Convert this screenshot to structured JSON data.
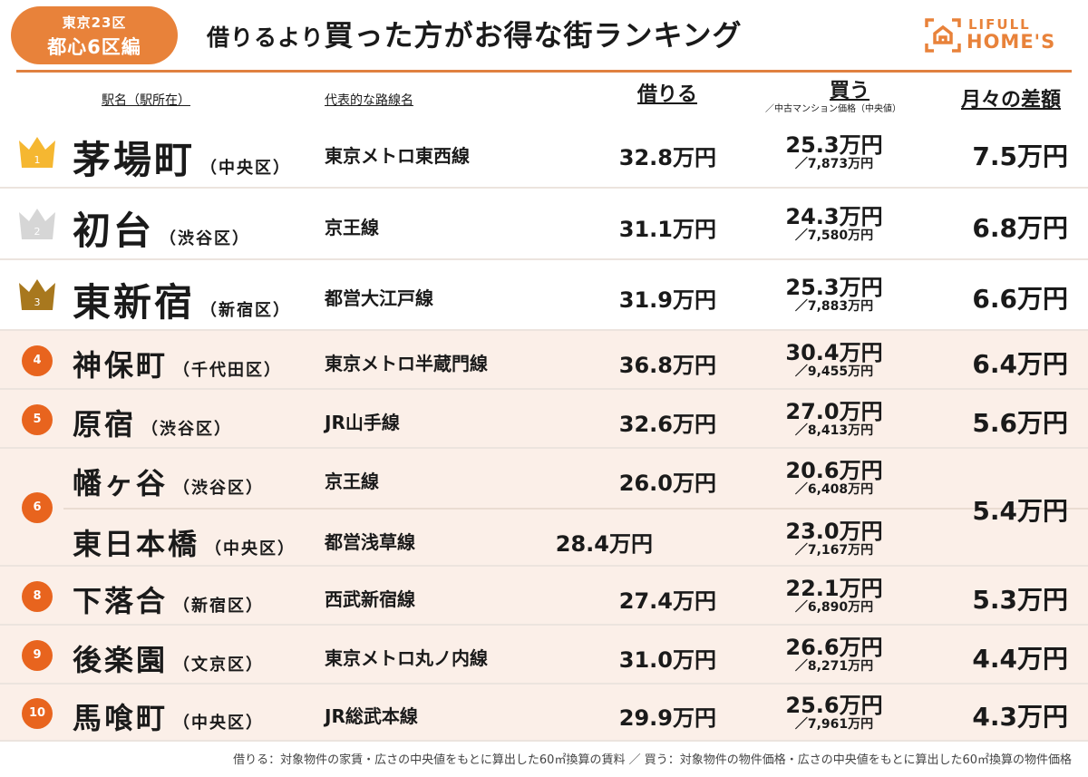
{
  "header": {
    "badge_line1": "東京23区",
    "badge_line2": "都心6区編",
    "title_prefix": "借りるより",
    "title_main": "買った方がお得な街ランキング",
    "logo_top": "LIFULL",
    "logo_bottom": "HOME'S",
    "brand_color": "#e8823a"
  },
  "columns": {
    "station": "駅名（駅所在）",
    "line": "代表的な路線名",
    "rent": "借りる",
    "buy": "買う",
    "buy_note": "／中古マンション価格（中央値）",
    "diff": "月々の差額"
  },
  "rows": [
    {
      "rank": "1",
      "badge": "crown-gold",
      "diff": "7.5万円",
      "stations": [
        {
          "name": "茅場町",
          "ward": "（中央区）",
          "line": "東京メトロ東西線",
          "rent": "32.8万円",
          "buy": "25.3万円",
          "price": "／7,873万円"
        }
      ]
    },
    {
      "rank": "2",
      "badge": "crown-silver",
      "diff": "6.8万円",
      "stations": [
        {
          "name": "初台",
          "ward": "（渋谷区）",
          "line": "京王線",
          "rent": "31.1万円",
          "buy": "24.3万円",
          "price": "／7,580万円"
        }
      ]
    },
    {
      "rank": "3",
      "badge": "crown-bronze",
      "diff": "6.6万円",
      "stations": [
        {
          "name": "東新宿",
          "ward": "（新宿区）",
          "line": "都営大江戸線",
          "rent": "31.9万円",
          "buy": "25.3万円",
          "price": "／7,883万円"
        }
      ]
    },
    {
      "rank": "4",
      "badge": "circle",
      "diff": "6.4万円",
      "stations": [
        {
          "name": "神保町",
          "ward": "（千代田区）",
          "line": "東京メトロ半蔵門線",
          "rent": "36.8万円",
          "buy": "30.4万円",
          "price": "／9,455万円"
        }
      ]
    },
    {
      "rank": "5",
      "badge": "circle",
      "diff": "5.6万円",
      "stations": [
        {
          "name": "原宿",
          "ward": "（渋谷区）",
          "line": "JR山手線",
          "rent": "32.6万円",
          "buy": "27.0万円",
          "price": "／8,413万円"
        }
      ]
    },
    {
      "rank": "6",
      "badge": "circle",
      "diff": "5.4万円",
      "stations": [
        {
          "name": "幡ヶ谷",
          "ward": "（渋谷区）",
          "line": "京王線",
          "rent": "26.0万円",
          "buy": "20.6万円",
          "price": "／6,408万円"
        },
        {
          "name": "東日本橋",
          "ward": "（中央区）",
          "line": "都営浅草線",
          "rent": "28.4万円",
          "buy": "23.0万円",
          "price": "／7,167万円"
        }
      ]
    },
    {
      "rank": "8",
      "badge": "circle",
      "diff": "5.3万円",
      "stations": [
        {
          "name": "下落合",
          "ward": "（新宿区）",
          "line": "西武新宿線",
          "rent": "27.4万円",
          "buy": "22.1万円",
          "price": "／6,890万円"
        }
      ]
    },
    {
      "rank": "9",
      "badge": "circle",
      "diff": "4.4万円",
      "stations": [
        {
          "name": "後楽園",
          "ward": "（文京区）",
          "line": "東京メトロ丸ノ内線",
          "rent": "31.0万円",
          "buy": "26.6万円",
          "price": "／8,271万円"
        }
      ]
    },
    {
      "rank": "10",
      "badge": "circle",
      "diff": "4.3万円",
      "stations": [
        {
          "name": "馬喰町",
          "ward": "（中央区）",
          "line": "JR総武本線",
          "rent": "29.9万円",
          "buy": "25.6万円",
          "price": "／7,961万円"
        }
      ]
    }
  ],
  "colors": {
    "gold": "#f5b731",
    "silver": "#d6d6d6",
    "bronze": "#a8781e",
    "circle": "#e8641e",
    "row_tint": "#fbefe8"
  },
  "footer": "借りる：対象物件の家賃・広さの中央値をもとに算出した60㎡換算の賃料 ／ 買う：対象物件の物件価格・広さの中央値をもとに算出した60㎡換算の物件価格"
}
